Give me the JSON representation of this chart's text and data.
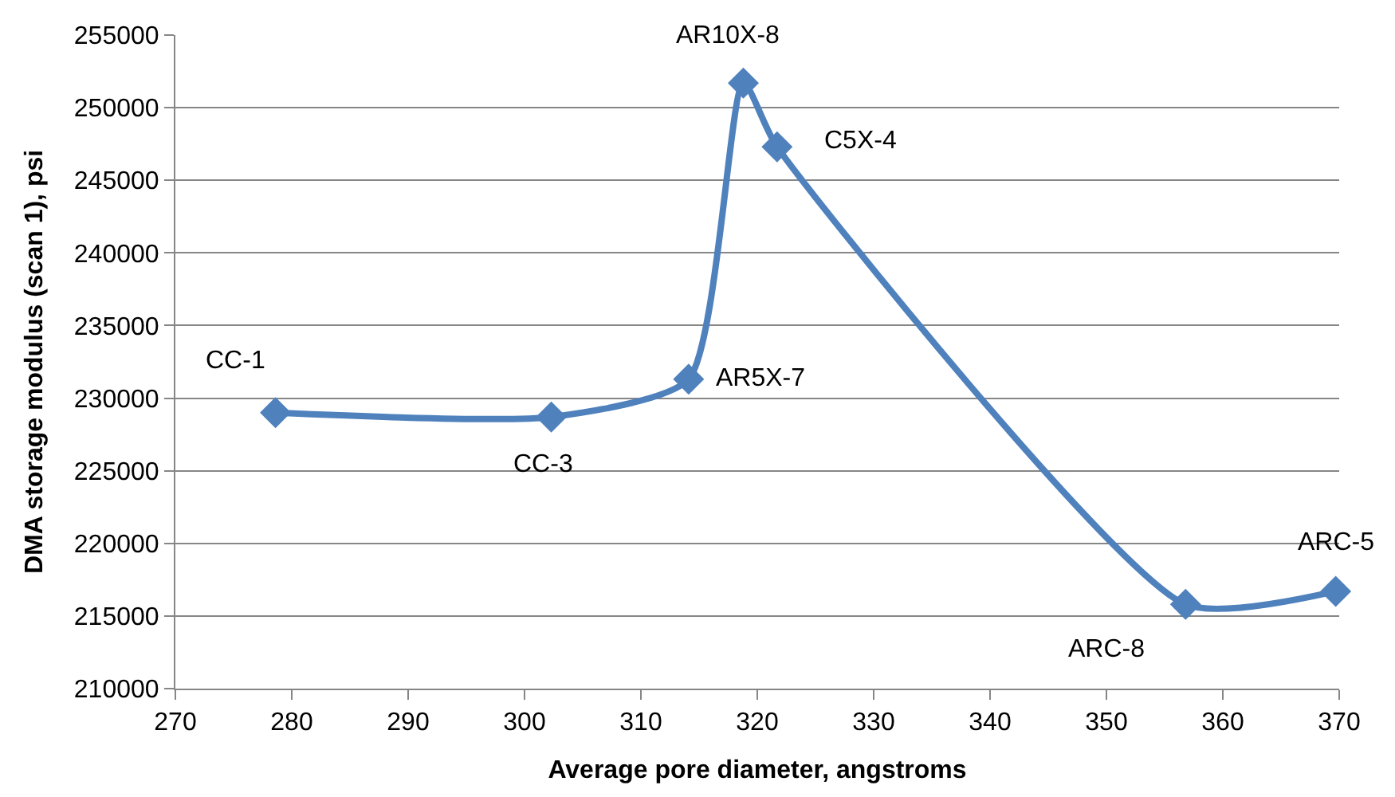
{
  "chart_data": {
    "type": "line",
    "xlabel": "Average pore diameter, angstroms",
    "ylabel": "DMA storage modulus (scan 1), psi",
    "x": [
      278.6,
      302.3,
      314.1,
      318.8,
      321.7,
      356.8,
      369.7
    ],
    "series": [
      {
        "color": "#4f81bd",
        "values": [
          229000,
          228700,
          231300,
          251700,
          247300,
          215800,
          216700
        ]
      }
    ],
    "xlim": [
      270,
      370
    ],
    "xticks": [
      270,
      280,
      290,
      300,
      310,
      320,
      330,
      340,
      350,
      360,
      370
    ],
    "ylim": [
      210000,
      255000
    ],
    "yticks": [
      210000,
      215000,
      220000,
      225000,
      230000,
      235000,
      240000,
      245000,
      250000,
      255000
    ],
    "grid": "y",
    "marker": "diamond",
    "line_style": "solid",
    "annotations": [
      {
        "text": "CC-1",
        "x": 278.6,
        "y": 229000
      },
      {
        "text": "CC-3",
        "x": 302.3,
        "y": 228700
      },
      {
        "text": "AR5X-7",
        "x": 314.1,
        "y": 231300
      },
      {
        "text": "AR10X-8",
        "x": 318.8,
        "y": 251700
      },
      {
        "text": "C5X-4",
        "x": 321.7,
        "y": 247300
      },
      {
        "text": "ARC-8",
        "x": 356.8,
        "y": 215800
      },
      {
        "text": "ARC-5",
        "x": 369.7,
        "y": 216700
      }
    ]
  }
}
